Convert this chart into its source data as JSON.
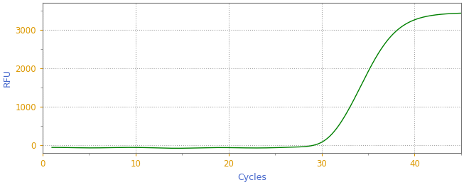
{
  "xlabel": "Cycles",
  "ylabel": "RFU",
  "line_color": "#008000",
  "background_color": "#ffffff",
  "plot_bg_color": "#ffffff",
  "grid_color": "#999999",
  "xlim": [
    0,
    45
  ],
  "ylim": [
    -200,
    3700
  ],
  "xticks": [
    0,
    10,
    20,
    30,
    40
  ],
  "yticks": [
    0,
    1000,
    2000,
    3000
  ],
  "tick_label_color": "#dd9900",
  "axis_label_color": "#4466cc",
  "sigmoid_L": 3450,
  "sigmoid_k": 0.52,
  "sigmoid_x0": 34.5,
  "x_start": 1,
  "x_end": 45,
  "baseline_value": -60
}
